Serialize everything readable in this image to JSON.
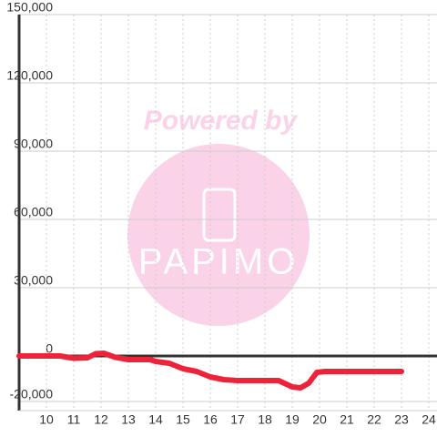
{
  "chart_data": {
    "type": "line",
    "annotations": [
      "Powered by",
      "PAPIMO"
    ],
    "x": [
      9,
      10,
      10.5,
      11,
      11.5,
      11.8,
      12.1,
      12.5,
      13,
      13.8,
      14,
      14.5,
      15,
      15.5,
      16,
      16.5,
      17,
      18,
      18.5,
      19,
      19.3,
      19.6,
      19.9,
      20.2,
      21,
      22,
      23
    ],
    "series": [
      {
        "color": "#ee2238",
        "values": [
          0,
          0,
          0,
          -1000,
          -800,
          1000,
          1200,
          -500,
          -1600,
          -1600,
          -2400,
          -3200,
          -5600,
          -6800,
          -9200,
          -10400,
          -10800,
          -10800,
          -10800,
          -13600,
          -14000,
          -12000,
          -7200,
          -6800,
          -6800,
          -6800,
          -6800
        ]
      }
    ],
    "xlim": [
      9,
      24.6
    ],
    "ylim": [
      -24000,
      150000
    ],
    "xticks": [
      10,
      11,
      12,
      13,
      14,
      15,
      16,
      17,
      18,
      19,
      20,
      21,
      22,
      23,
      24
    ],
    "yticks": [
      {
        "value": -20000,
        "label": "-20,000"
      },
      0,
      {
        "value": 30000,
        "label": "30,000"
      },
      {
        "value": 60000,
        "label": "60,000"
      },
      {
        "value": 90000,
        "label": "90,000"
      },
      {
        "value": 120000,
        "label": "120,000"
      },
      {
        "value": 150000,
        "label": "150,000"
      }
    ],
    "grid": true
  }
}
